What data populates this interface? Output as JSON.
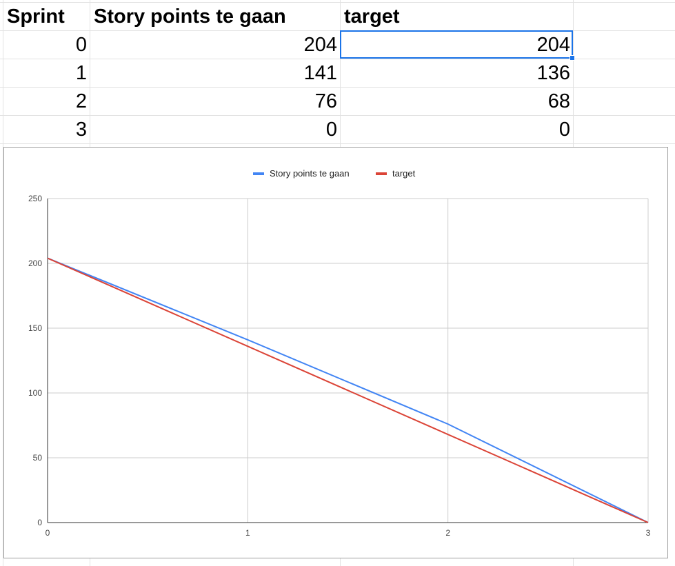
{
  "sheet": {
    "headers": [
      "Sprint",
      "Story points te gaan",
      "target"
    ],
    "rows": [
      [
        "0",
        "204",
        "204"
      ],
      [
        "1",
        "141",
        "136"
      ],
      [
        "2",
        "76",
        "68"
      ],
      [
        "3",
        "0",
        "0"
      ]
    ]
  },
  "chart_data": {
    "type": "line",
    "x": [
      0,
      1,
      2,
      3
    ],
    "series": [
      {
        "name": "Story points te gaan",
        "values": [
          204,
          141,
          76,
          0
        ],
        "color": "#4285f4"
      },
      {
        "name": "target",
        "values": [
          204,
          136,
          68,
          0
        ],
        "color": "#db4437"
      }
    ],
    "xlim": [
      0,
      3
    ],
    "ylim": [
      0,
      250
    ],
    "xticks": [
      "0",
      "1",
      "2",
      "3"
    ],
    "yticks": [
      "0",
      "50",
      "100",
      "150",
      "200",
      "250"
    ],
    "legend_position": "top",
    "grid": true,
    "title": "",
    "xlabel": "",
    "ylabel": ""
  }
}
